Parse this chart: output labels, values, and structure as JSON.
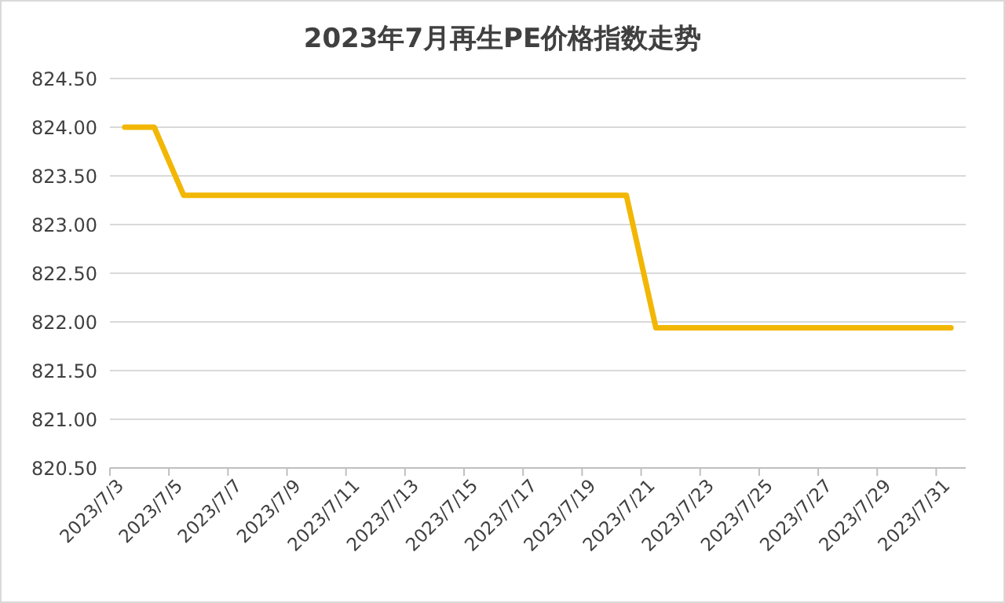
{
  "chart_data": {
    "type": "line",
    "title": "2023年7月再生PE价格指数走势",
    "categories": [
      "2023/7/3",
      null,
      "2023/7/5",
      null,
      "2023/7/7",
      null,
      "2023/7/9",
      null,
      "2023/7/11",
      null,
      "2023/7/13",
      null,
      "2023/7/15",
      null,
      "2023/7/17",
      null,
      "2023/7/19",
      null,
      "2023/7/21",
      null,
      "2023/7/23",
      null,
      "2023/7/25",
      null,
      "2023/7/27",
      null,
      "2023/7/29",
      null,
      "2023/7/31"
    ],
    "series": [
      {
        "color": "#f2b705",
        "values": [
          824.0,
          824.0,
          823.3,
          823.3,
          823.3,
          823.3,
          823.3,
          823.3,
          823.3,
          823.3,
          823.3,
          823.3,
          823.3,
          823.3,
          823.3,
          823.3,
          823.3,
          823.3,
          821.94,
          821.94,
          821.94,
          821.94,
          821.94,
          821.94,
          821.94,
          821.94,
          821.94,
          821.94,
          821.94
        ]
      }
    ],
    "ylim": [
      820.5,
      824.5
    ],
    "yticks": [
      {
        "value": 820.5,
        "label": "820.50"
      },
      {
        "value": 821,
        "label": "821.00"
      },
      {
        "value": 821.5,
        "label": "821.50"
      },
      {
        "value": 822,
        "label": "822.00"
      },
      {
        "value": 822.5,
        "label": "822.50"
      },
      {
        "value": 823,
        "label": "823.00"
      },
      {
        "value": 823.5,
        "label": "823.50"
      },
      {
        "value": 824,
        "label": "824.00"
      },
      {
        "value": 824.5,
        "label": "824.50"
      }
    ],
    "grid": "y",
    "marker": "none",
    "line_style": "solid"
  }
}
